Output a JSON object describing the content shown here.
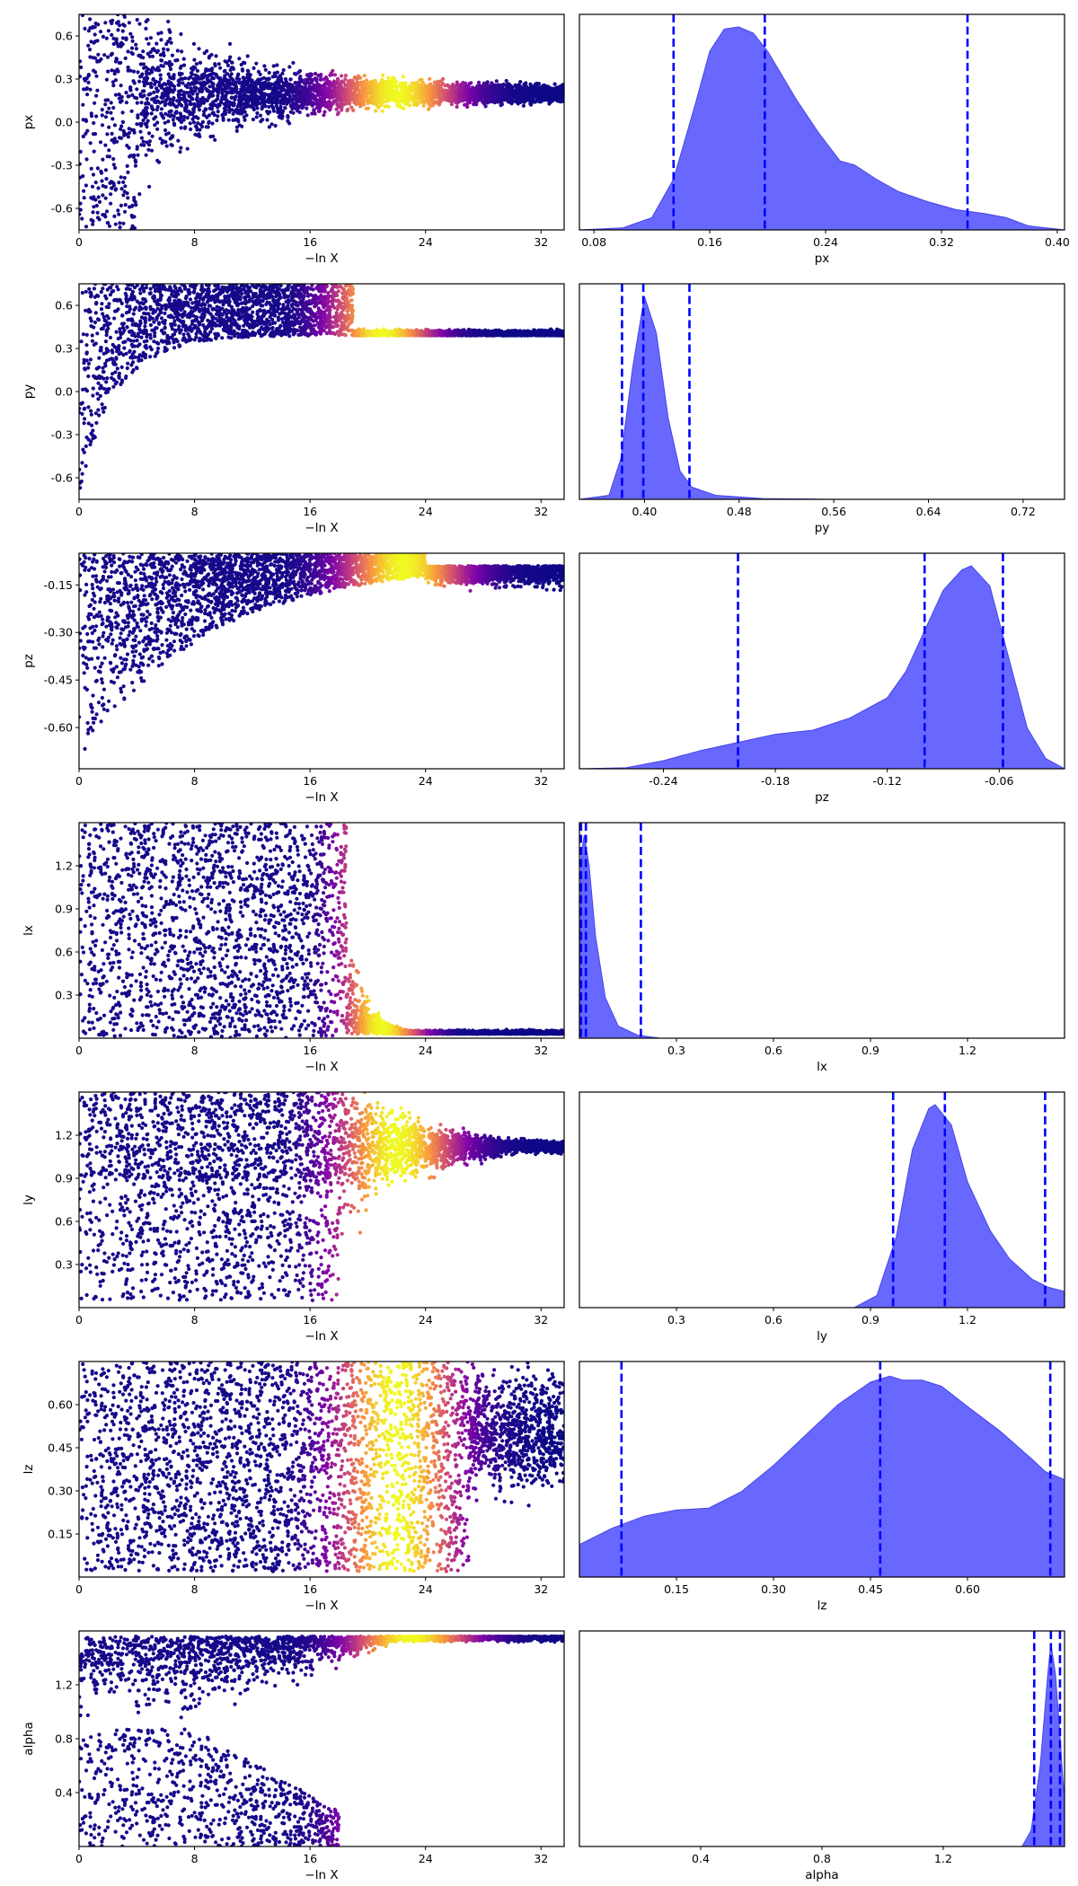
{
  "figure": {
    "colors": {
      "scatter_low": "#0d0887",
      "scatter_mid": "#b12a90",
      "scatter_high": "#f0f921",
      "kde_fill": "#6060ff",
      "quantile_line": "#0000ff"
    },
    "trace_xlabel": "−ln X"
  },
  "chart_data": [
    {
      "type": "scatter",
      "param": "px",
      "ylabel": "px",
      "xlabel": "−ln X",
      "xlim": [
        0,
        33.6
      ],
      "ylim": [
        -0.75,
        0.75
      ],
      "xticks": [
        "0",
        "8",
        "16",
        "24",
        "32"
      ],
      "yticks": [
        [
          "0.6",
          0.6
        ],
        [
          "0.3",
          0.3
        ],
        [
          "0.0",
          0.0
        ],
        [
          "-0.3",
          -0.3
        ],
        [
          "-0.6",
          -0.6
        ]
      ],
      "shape": {
        "kind": "funnel",
        "conv": 0.2,
        "upper": 0.1,
        "lower": 0.1,
        "bright_center": 22,
        "bright_width": 3
      }
    },
    {
      "type": "area",
      "param": "px",
      "xlabel": "px",
      "xlim": [
        0.07,
        0.405
      ],
      "xticks": [
        [
          "0.08",
          0.08
        ],
        [
          "0.16",
          0.16
        ],
        [
          "0.24",
          0.24
        ],
        [
          "0.32",
          0.32
        ],
        [
          "0.40",
          0.4
        ]
      ],
      "quantiles": [
        0.135,
        0.198,
        0.338
      ],
      "density": [
        [
          0.07,
          0.0
        ],
        [
          0.1,
          0.01
        ],
        [
          0.12,
          0.06
        ],
        [
          0.135,
          0.25
        ],
        [
          0.15,
          0.62
        ],
        [
          0.16,
          0.88
        ],
        [
          0.17,
          0.99
        ],
        [
          0.18,
          1.0
        ],
        [
          0.19,
          0.97
        ],
        [
          0.2,
          0.88
        ],
        [
          0.22,
          0.64
        ],
        [
          0.235,
          0.48
        ],
        [
          0.25,
          0.34
        ],
        [
          0.26,
          0.32
        ],
        [
          0.275,
          0.25
        ],
        [
          0.29,
          0.19
        ],
        [
          0.31,
          0.14
        ],
        [
          0.33,
          0.1
        ],
        [
          0.35,
          0.08
        ],
        [
          0.365,
          0.06
        ],
        [
          0.38,
          0.02
        ],
        [
          0.405,
          0.0
        ]
      ]
    },
    {
      "type": "scatter",
      "param": "py",
      "ylabel": "py",
      "xlabel": "−ln X",
      "xlim": [
        0,
        33.6
      ],
      "ylim": [
        -0.75,
        0.75
      ],
      "xticks": [
        "0",
        "8",
        "16",
        "24",
        "32"
      ],
      "yticks": [
        [
          "0.6",
          0.6
        ],
        [
          "0.3",
          0.3
        ],
        [
          "0.0",
          0.0
        ],
        [
          "-0.3",
          -0.3
        ],
        [
          "-0.6",
          -0.6
        ]
      ],
      "shape": {
        "kind": "upper",
        "conv": 0.39,
        "cutoff": 19,
        "bright_center": 21,
        "bright_width": 2.5
      }
    },
    {
      "type": "area",
      "param": "py",
      "xlabel": "py",
      "xlim": [
        0.345,
        0.755
      ],
      "xticks": [
        [
          "0.40",
          0.4
        ],
        [
          "0.48",
          0.48
        ],
        [
          "0.56",
          0.56
        ],
        [
          "0.64",
          0.64
        ],
        [
          "0.72",
          0.72
        ]
      ],
      "quantiles": [
        0.381,
        0.399,
        0.438
      ],
      "density": [
        [
          0.345,
          0.0
        ],
        [
          0.37,
          0.02
        ],
        [
          0.38,
          0.2
        ],
        [
          0.39,
          0.65
        ],
        [
          0.4,
          1.0
        ],
        [
          0.41,
          0.82
        ],
        [
          0.42,
          0.4
        ],
        [
          0.43,
          0.14
        ],
        [
          0.44,
          0.06
        ],
        [
          0.46,
          0.02
        ],
        [
          0.5,
          0.004
        ],
        [
          0.56,
          0.0
        ],
        [
          0.755,
          0.0
        ]
      ]
    },
    {
      "type": "scatter",
      "param": "pz",
      "ylabel": "pz",
      "xlabel": "−ln X",
      "xlim": [
        0,
        33.6
      ],
      "ylim": [
        -0.73,
        -0.05
      ],
      "xticks": [
        "0",
        "8",
        "16",
        "24",
        "32"
      ],
      "yticks": [
        [
          "-0.15",
          -0.15
        ],
        [
          "-0.30",
          -0.3
        ],
        [
          "-0.45",
          -0.45
        ],
        [
          "-0.60",
          -0.6
        ]
      ],
      "shape": {
        "kind": "lower",
        "conv": -0.08,
        "bright_center": 22.5,
        "bright_width": 3
      }
    },
    {
      "type": "area",
      "param": "pz",
      "xlabel": "pz",
      "xlim": [
        -0.285,
        -0.025
      ],
      "xticks": [
        [
          "-0.24",
          -0.24
        ],
        [
          "-0.18",
          -0.18
        ],
        [
          "-0.12",
          -0.12
        ],
        [
          "-0.06",
          -0.06
        ]
      ],
      "quantiles": [
        -0.2,
        -0.1,
        -0.058
      ],
      "density": [
        [
          -0.285,
          0.0
        ],
        [
          -0.26,
          0.005
        ],
        [
          -0.24,
          0.04
        ],
        [
          -0.22,
          0.09
        ],
        [
          -0.2,
          0.13
        ],
        [
          -0.18,
          0.17
        ],
        [
          -0.16,
          0.19
        ],
        [
          -0.14,
          0.25
        ],
        [
          -0.12,
          0.35
        ],
        [
          -0.11,
          0.48
        ],
        [
          -0.1,
          0.68
        ],
        [
          -0.09,
          0.88
        ],
        [
          -0.08,
          0.98
        ],
        [
          -0.075,
          1.0
        ],
        [
          -0.065,
          0.9
        ],
        [
          -0.055,
          0.55
        ],
        [
          -0.045,
          0.2
        ],
        [
          -0.035,
          0.05
        ],
        [
          -0.025,
          0.0
        ]
      ]
    },
    {
      "type": "scatter",
      "param": "lx",
      "ylabel": "lx",
      "xlabel": "−ln X",
      "xlim": [
        0,
        33.6
      ],
      "ylim": [
        0.0,
        1.5
      ],
      "xticks": [
        "0",
        "8",
        "16",
        "24",
        "32"
      ],
      "yticks": [
        [
          "1.2",
          1.2
        ],
        [
          "0.9",
          0.9
        ],
        [
          "0.6",
          0.6
        ],
        [
          "0.3",
          0.3
        ]
      ],
      "shape": {
        "kind": "wall",
        "conv": 0.03,
        "cutoff": 18.5,
        "bright_center": 21,
        "bright_width": 2
      }
    },
    {
      "type": "area",
      "param": "lx",
      "xlabel": "lx",
      "xlim": [
        0.0,
        1.5
      ],
      "xticks": [
        [
          "0.3",
          0.3
        ],
        [
          "0.6",
          0.6
        ],
        [
          "0.9",
          0.9
        ],
        [
          "1.2",
          1.2
        ]
      ],
      "quantiles": [
        0.005,
        0.02,
        0.19
      ],
      "density": [
        [
          0.0,
          0.0
        ],
        [
          0.005,
          0.9
        ],
        [
          0.015,
          1.0
        ],
        [
          0.03,
          0.85
        ],
        [
          0.05,
          0.5
        ],
        [
          0.08,
          0.2
        ],
        [
          0.12,
          0.06
        ],
        [
          0.18,
          0.015
        ],
        [
          0.25,
          0.0
        ],
        [
          1.5,
          0.0
        ]
      ]
    },
    {
      "type": "scatter",
      "param": "ly",
      "ylabel": "ly",
      "xlabel": "−ln X",
      "xlim": [
        0,
        33.6
      ],
      "ylim": [
        0.0,
        1.5
      ],
      "xticks": [
        "0",
        "8",
        "16",
        "24",
        "32"
      ],
      "yticks": [
        [
          "1.2",
          1.2
        ],
        [
          "0.9",
          0.9
        ],
        [
          "0.6",
          0.6
        ],
        [
          "0.3",
          0.3
        ]
      ],
      "shape": {
        "kind": "upperwall",
        "conv": 1.12,
        "cutoff": 18,
        "bright_center": 22,
        "bright_width": 3
      }
    },
    {
      "type": "area",
      "param": "ly",
      "xlabel": "ly",
      "xlim": [
        0.0,
        1.5
      ],
      "xticks": [
        [
          "0.3",
          0.3
        ],
        [
          "0.6",
          0.6
        ],
        [
          "0.9",
          0.9
        ],
        [
          "1.2",
          1.2
        ]
      ],
      "quantiles": [
        0.97,
        1.13,
        1.44
      ],
      "density": [
        [
          0.0,
          0.0
        ],
        [
          0.85,
          0.0
        ],
        [
          0.92,
          0.06
        ],
        [
          0.98,
          0.35
        ],
        [
          1.03,
          0.78
        ],
        [
          1.08,
          0.98
        ],
        [
          1.1,
          1.0
        ],
        [
          1.15,
          0.9
        ],
        [
          1.2,
          0.62
        ],
        [
          1.27,
          0.38
        ],
        [
          1.33,
          0.24
        ],
        [
          1.4,
          0.14
        ],
        [
          1.45,
          0.1
        ],
        [
          1.5,
          0.08
        ]
      ]
    },
    {
      "type": "scatter",
      "param": "lz",
      "ylabel": "lz",
      "xlabel": "−ln X",
      "xlim": [
        0,
        33.6
      ],
      "ylim": [
        0.0,
        0.75
      ],
      "xticks": [
        "0",
        "8",
        "16",
        "24",
        "32"
      ],
      "yticks": [
        [
          "0.60",
          0.6
        ],
        [
          "0.45",
          0.45
        ],
        [
          "0.30",
          0.3
        ],
        [
          "0.15",
          0.15
        ]
      ],
      "shape": {
        "kind": "full",
        "conv": 0.5,
        "bright_center": 22,
        "bright_width": 3
      }
    },
    {
      "type": "area",
      "param": "lz",
      "xlabel": "lz",
      "xlim": [
        0.0,
        0.75
      ],
      "xticks": [
        [
          "0.15",
          0.15
        ],
        [
          "0.30",
          0.3
        ],
        [
          "0.45",
          0.45
        ],
        [
          "0.60",
          0.6
        ]
      ],
      "quantiles": [
        0.065,
        0.465,
        0.728
      ],
      "density": [
        [
          0.0,
          0.16
        ],
        [
          0.05,
          0.24
        ],
        [
          0.1,
          0.3
        ],
        [
          0.15,
          0.33
        ],
        [
          0.2,
          0.34
        ],
        [
          0.25,
          0.42
        ],
        [
          0.3,
          0.55
        ],
        [
          0.35,
          0.7
        ],
        [
          0.4,
          0.85
        ],
        [
          0.45,
          0.96
        ],
        [
          0.48,
          0.99
        ],
        [
          0.5,
          0.97
        ],
        [
          0.53,
          0.97
        ],
        [
          0.56,
          0.94
        ],
        [
          0.6,
          0.84
        ],
        [
          0.65,
          0.72
        ],
        [
          0.7,
          0.58
        ],
        [
          0.72,
          0.52
        ],
        [
          0.75,
          0.48
        ]
      ]
    },
    {
      "type": "scatter",
      "param": "alpha",
      "ylabel": "alpha",
      "xlabel": "−ln X",
      "xlim": [
        0,
        33.6
      ],
      "ylim": [
        0.0,
        1.6
      ],
      "xticks": [
        "0",
        "8",
        "16",
        "24",
        "32"
      ],
      "yticks": [
        [
          "1.2",
          1.2
        ],
        [
          "0.8",
          0.8
        ],
        [
          "0.4",
          0.4
        ]
      ],
      "shape": {
        "kind": "alpha",
        "conv": 1.56,
        "bright_center": 23,
        "bright_width": 3
      }
    },
    {
      "type": "area",
      "param": "alpha",
      "xlabel": "alpha",
      "xlim": [
        0.0,
        1.6
      ],
      "xticks": [
        [
          "0.4",
          0.4
        ],
        [
          "0.8",
          0.8
        ],
        [
          "1.2",
          1.2
        ]
      ],
      "quantiles": [
        1.5,
        1.555,
        1.585
      ],
      "density": [
        [
          0.0,
          0.0
        ],
        [
          1.46,
          0.0
        ],
        [
          1.49,
          0.08
        ],
        [
          1.52,
          0.4
        ],
        [
          1.545,
          0.85
        ],
        [
          1.555,
          1.0
        ],
        [
          1.57,
          0.85
        ],
        [
          1.585,
          0.55
        ],
        [
          1.595,
          0.32
        ],
        [
          1.6,
          0.25
        ]
      ]
    }
  ]
}
